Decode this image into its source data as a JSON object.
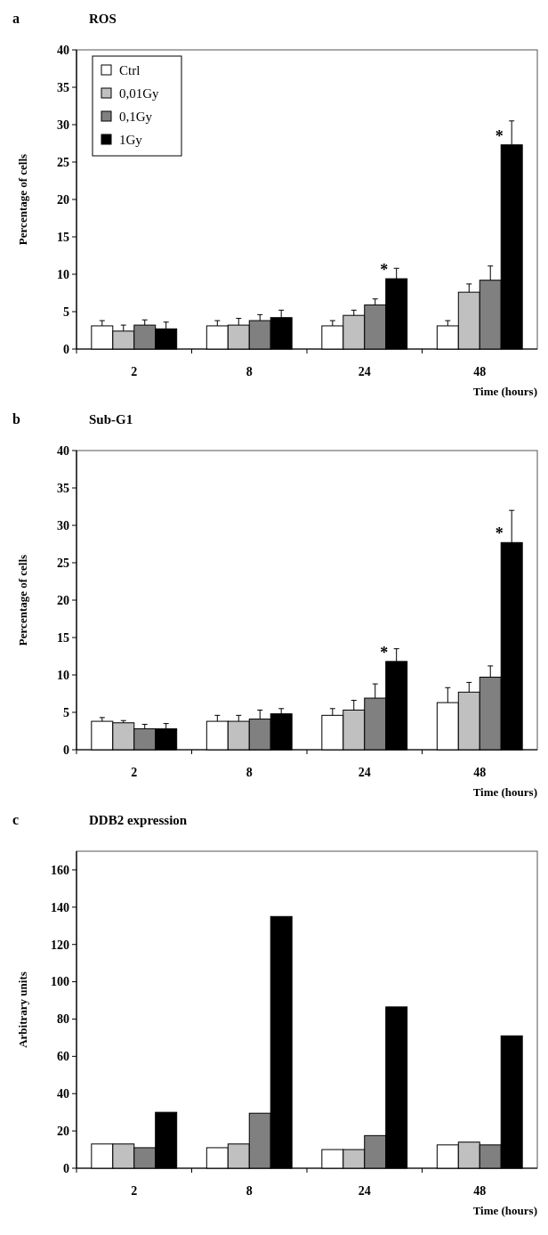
{
  "chart_data": [
    {
      "type": "bar",
      "title": "ROS",
      "xlabel": "Time (hours)",
      "ylabel": "Percentage of cells",
      "categories": [
        "2",
        "8",
        "24",
        "48"
      ],
      "ylim": [
        0,
        40
      ],
      "yticks": [
        0,
        5,
        10,
        15,
        20,
        25,
        30,
        35,
        40
      ],
      "legend": "top left",
      "series": [
        {
          "name": "Ctrl",
          "color": "#ffffff",
          "values": [
            3.1,
            3.1,
            3.1,
            3.1
          ],
          "errors": [
            [
              3.1,
              3.8
            ],
            [
              3.1,
              3.8
            ],
            [
              3.1,
              3.8
            ],
            [
              3.1,
              3.8
            ]
          ]
        },
        {
          "name": "0,01Gy",
          "color": "#c0c0c0",
          "values": [
            2.4,
            3.2,
            4.5,
            7.6
          ],
          "errors": [
            [
              2.4,
              3.2
            ],
            [
              3.2,
              4.1
            ],
            [
              4.5,
              5.2
            ],
            [
              7.6,
              8.7
            ]
          ]
        },
        {
          "name": "0,1Gy",
          "color": "#808080",
          "values": [
            3.2,
            3.8,
            5.9,
            9.2
          ],
          "errors": [
            [
              3.2,
              3.9
            ],
            [
              3.8,
              4.6
            ],
            [
              5.9,
              6.7
            ],
            [
              9.2,
              11.1
            ]
          ]
        },
        {
          "name": "1Gy",
          "color": "#000000",
          "values": [
            2.7,
            4.2,
            9.4,
            27.3
          ],
          "errors": [
            [
              2.7,
              3.6
            ],
            [
              4.2,
              5.2
            ],
            [
              9.4,
              10.8
            ],
            [
              27.3,
              30.5
            ]
          ]
        }
      ],
      "annotations": [
        "a",
        "*",
        "*"
      ]
    },
    {
      "type": "bar",
      "title": "Sub-G1",
      "xlabel": "Time (hours)",
      "ylabel": "Percentage of cells",
      "categories": [
        "2",
        "8",
        "24",
        "48"
      ],
      "ylim": [
        0,
        40
      ],
      "yticks": [
        0,
        5,
        10,
        15,
        20,
        25,
        30,
        35,
        40
      ],
      "series": [
        {
          "color": "#ffffff",
          "values": [
            3.8,
            3.8,
            4.6,
            6.3
          ],
          "errors": [
            [
              3.8,
              4.3
            ],
            [
              3.8,
              4.6
            ],
            [
              4.6,
              5.5
            ],
            [
              6.3,
              8.3
            ]
          ]
        },
        {
          "color": "#c0c0c0",
          "values": [
            3.6,
            3.8,
            5.3,
            7.7
          ],
          "errors": [
            [
              3.6,
              3.9
            ],
            [
              3.8,
              4.6
            ],
            [
              5.3,
              6.6
            ],
            [
              7.7,
              9.0
            ]
          ]
        },
        {
          "color": "#808080",
          "values": [
            2.8,
            4.1,
            6.9,
            9.7
          ],
          "errors": [
            [
              2.8,
              3.4
            ],
            [
              4.1,
              5.3
            ],
            [
              6.9,
              8.8
            ],
            [
              9.7,
              11.2
            ]
          ]
        },
        {
          "color": "#000000",
          "values": [
            2.8,
            4.8,
            11.8,
            27.7
          ],
          "errors": [
            [
              2.8,
              3.5
            ],
            [
              4.8,
              5.5
            ],
            [
              11.8,
              13.5
            ],
            [
              27.7,
              32.0
            ]
          ]
        }
      ],
      "annotations": [
        "b",
        "*",
        "*"
      ]
    },
    {
      "type": "bar",
      "title": "DDB2 expression",
      "xlabel": "Time (hours)",
      "ylabel": "Arbitrary units",
      "categories": [
        "2",
        "8",
        "24",
        "48"
      ],
      "ylim": [
        0,
        170
      ],
      "yticks": [
        0,
        20,
        40,
        60,
        80,
        100,
        120,
        140,
        160
      ],
      "series": [
        {
          "color": "#ffffff",
          "values": [
            13,
            11,
            10,
            12.5
          ]
        },
        {
          "color": "#c0c0c0",
          "values": [
            13,
            13,
            10,
            14
          ]
        },
        {
          "color": "#808080",
          "values": [
            11,
            29.5,
            17.5,
            12.5
          ]
        },
        {
          "color": "#000000",
          "values": [
            30,
            135,
            86.5,
            71
          ]
        }
      ],
      "annotations": [
        "c"
      ]
    }
  ]
}
